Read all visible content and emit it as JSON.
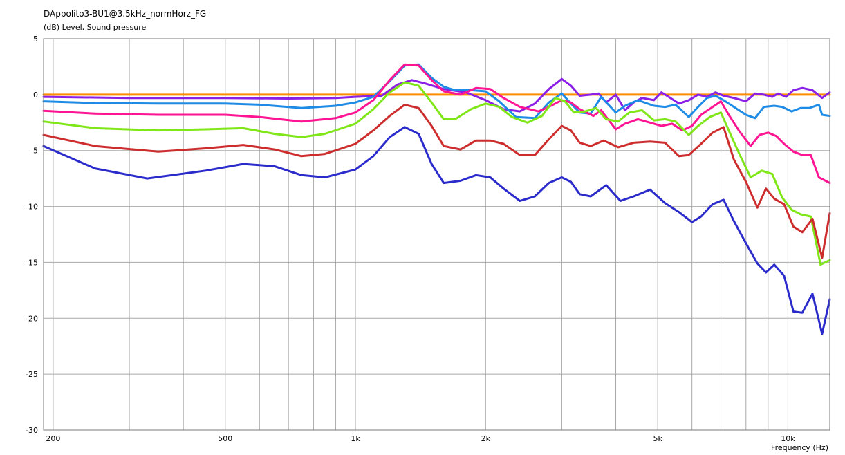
{
  "chart_data": {
    "type": "line",
    "title": "DAppolito3-BU1@3.5kHz_normHorz_FG",
    "ylabel": "(dB)  Level, Sound pressure",
    "xlabel": "Frequency  (Hz)",
    "x_scale": "log",
    "xlim": [
      190,
      12500
    ],
    "ylim": [
      -30,
      5
    ],
    "grid": true,
    "y_ticks": [
      {
        "value": 5,
        "label": "5"
      },
      {
        "value": 0,
        "label": "0"
      },
      {
        "value": -5,
        "label": "-5"
      },
      {
        "value": -10,
        "label": "-10"
      },
      {
        "value": -15,
        "label": "-15"
      },
      {
        "value": -20,
        "label": "-20"
      },
      {
        "value": -25,
        "label": "-25"
      },
      {
        "value": -30,
        "label": "-30"
      }
    ],
    "x_ticks": [
      {
        "value": 200,
        "label": "200"
      },
      {
        "value": 500,
        "label": "500"
      },
      {
        "value": 1000,
        "label": "1k"
      },
      {
        "value": 2000,
        "label": "2k"
      },
      {
        "value": 5000,
        "label": "5k"
      },
      {
        "value": 10000,
        "label": "10k"
      }
    ],
    "x_minor_grid": [
      300,
      400,
      600,
      700,
      800,
      900,
      3000,
      4000,
      6000,
      7000,
      8000,
      9000
    ],
    "series": [
      {
        "color": "#ff8c00",
        "points": [
          [
            190,
            0
          ],
          [
            12500,
            0
          ]
        ]
      },
      {
        "color": "#8b1fe6",
        "points": [
          [
            190,
            -0.2
          ],
          [
            300,
            -0.3
          ],
          [
            500,
            -0.3
          ],
          [
            700,
            -0.35
          ],
          [
            900,
            -0.3
          ],
          [
            1000,
            -0.2
          ],
          [
            1150,
            -0.1
          ],
          [
            1250,
            0.9
          ],
          [
            1350,
            1.3
          ],
          [
            1450,
            1.0
          ],
          [
            1600,
            0.5
          ],
          [
            1800,
            0.2
          ],
          [
            2000,
            -0.5
          ],
          [
            2200,
            -1.3
          ],
          [
            2400,
            -1.5
          ],
          [
            2600,
            -0.8
          ],
          [
            2800,
            0.5
          ],
          [
            3000,
            1.4
          ],
          [
            3150,
            0.8
          ],
          [
            3300,
            -0.1
          ],
          [
            3500,
            0.0
          ],
          [
            3650,
            0.1
          ],
          [
            3800,
            -0.7
          ],
          [
            4000,
            0.0
          ],
          [
            4200,
            -1.4
          ],
          [
            4400,
            -0.7
          ],
          [
            4600,
            -0.3
          ],
          [
            4900,
            -0.5
          ],
          [
            5100,
            0.2
          ],
          [
            5300,
            -0.2
          ],
          [
            5600,
            -0.8
          ],
          [
            5900,
            -0.5
          ],
          [
            6200,
            0.0
          ],
          [
            6500,
            -0.2
          ],
          [
            6800,
            0.2
          ],
          [
            7100,
            -0.1
          ],
          [
            7500,
            -0.3
          ],
          [
            8000,
            -0.6
          ],
          [
            8400,
            0.1
          ],
          [
            8800,
            0.0
          ],
          [
            9200,
            -0.2
          ],
          [
            9500,
            0.1
          ],
          [
            9900,
            -0.2
          ],
          [
            10300,
            0.4
          ],
          [
            10800,
            0.6
          ],
          [
            11400,
            0.4
          ],
          [
            12000,
            -0.3
          ],
          [
            12500,
            0.2
          ]
        ]
      },
      {
        "color": "#1e8ce6",
        "points": [
          [
            190,
            -0.6
          ],
          [
            250,
            -0.75
          ],
          [
            350,
            -0.8
          ],
          [
            500,
            -0.8
          ],
          [
            600,
            -0.9
          ],
          [
            750,
            -1.2
          ],
          [
            900,
            -1.0
          ],
          [
            1000,
            -0.7
          ],
          [
            1100,
            -0.2
          ],
          [
            1200,
            1.2
          ],
          [
            1300,
            2.6
          ],
          [
            1400,
            2.7
          ],
          [
            1500,
            1.5
          ],
          [
            1600,
            0.7
          ],
          [
            1700,
            0.4
          ],
          [
            1850,
            0.4
          ],
          [
            2000,
            0.3
          ],
          [
            2150,
            -0.6
          ],
          [
            2350,
            -2.0
          ],
          [
            2600,
            -2.1
          ],
          [
            2800,
            -0.7
          ],
          [
            3000,
            0.1
          ],
          [
            3150,
            -0.8
          ],
          [
            3300,
            -1.6
          ],
          [
            3500,
            -1.7
          ],
          [
            3700,
            -0.2
          ],
          [
            4000,
            -1.6
          ],
          [
            4200,
            -1.0
          ],
          [
            4500,
            -0.5
          ],
          [
            4900,
            -1.0
          ],
          [
            5200,
            -1.1
          ],
          [
            5500,
            -0.9
          ],
          [
            5900,
            -2.0
          ],
          [
            6200,
            -1.1
          ],
          [
            6500,
            -0.3
          ],
          [
            6800,
            -0.1
          ],
          [
            7100,
            -0.5
          ],
          [
            7500,
            -1.1
          ],
          [
            8000,
            -1.8
          ],
          [
            8400,
            -2.1
          ],
          [
            8800,
            -1.1
          ],
          [
            9300,
            -1.0
          ],
          [
            9700,
            -1.1
          ],
          [
            10200,
            -1.5
          ],
          [
            10700,
            -1.2
          ],
          [
            11200,
            -1.2
          ],
          [
            11800,
            -0.9
          ],
          [
            12000,
            -1.8
          ],
          [
            12500,
            -1.9
          ]
        ]
      },
      {
        "color": "#ff1493",
        "points": [
          [
            190,
            -1.45
          ],
          [
            250,
            -1.7
          ],
          [
            350,
            -1.8
          ],
          [
            500,
            -1.8
          ],
          [
            600,
            -2.0
          ],
          [
            750,
            -2.4
          ],
          [
            900,
            -2.1
          ],
          [
            1000,
            -1.6
          ],
          [
            1100,
            -0.5
          ],
          [
            1200,
            1.3
          ],
          [
            1300,
            2.7
          ],
          [
            1400,
            2.6
          ],
          [
            1500,
            1.3
          ],
          [
            1600,
            0.3
          ],
          [
            1750,
            0.0
          ],
          [
            1900,
            0.6
          ],
          [
            2050,
            0.5
          ],
          [
            2200,
            -0.3
          ],
          [
            2400,
            -1.1
          ],
          [
            2650,
            -1.5
          ],
          [
            2800,
            -1.1
          ],
          [
            3000,
            -0.5
          ],
          [
            3150,
            -0.7
          ],
          [
            3300,
            -1.3
          ],
          [
            3550,
            -1.9
          ],
          [
            3700,
            -1.4
          ],
          [
            4000,
            -3.1
          ],
          [
            4200,
            -2.6
          ],
          [
            4500,
            -2.2
          ],
          [
            4800,
            -2.5
          ],
          [
            5100,
            -2.8
          ],
          [
            5400,
            -2.6
          ],
          [
            5700,
            -3.2
          ],
          [
            6000,
            -2.8
          ],
          [
            6300,
            -1.8
          ],
          [
            6700,
            -1.1
          ],
          [
            7000,
            -0.6
          ],
          [
            7300,
            -1.8
          ],
          [
            7700,
            -3.2
          ],
          [
            8200,
            -4.6
          ],
          [
            8600,
            -3.6
          ],
          [
            9000,
            -3.4
          ],
          [
            9400,
            -3.7
          ],
          [
            9800,
            -4.4
          ],
          [
            10300,
            -5.1
          ],
          [
            10800,
            -5.4
          ],
          [
            11300,
            -5.4
          ],
          [
            11800,
            -7.4
          ],
          [
            12500,
            -7.9
          ]
        ]
      },
      {
        "color": "#7fe617",
        "points": [
          [
            190,
            -2.4
          ],
          [
            250,
            -3.0
          ],
          [
            350,
            -3.2
          ],
          [
            450,
            -3.1
          ],
          [
            550,
            -3.0
          ],
          [
            650,
            -3.5
          ],
          [
            750,
            -3.8
          ],
          [
            850,
            -3.5
          ],
          [
            1000,
            -2.6
          ],
          [
            1100,
            -1.3
          ],
          [
            1200,
            0.2
          ],
          [
            1300,
            1.1
          ],
          [
            1400,
            0.8
          ],
          [
            1500,
            -0.7
          ],
          [
            1600,
            -2.2
          ],
          [
            1700,
            -2.2
          ],
          [
            1850,
            -1.3
          ],
          [
            2000,
            -0.8
          ],
          [
            2150,
            -1.1
          ],
          [
            2300,
            -2.0
          ],
          [
            2500,
            -2.5
          ],
          [
            2700,
            -1.9
          ],
          [
            2900,
            -0.3
          ],
          [
            3050,
            -0.6
          ],
          [
            3200,
            -1.6
          ],
          [
            3400,
            -1.5
          ],
          [
            3600,
            -1.2
          ],
          [
            3800,
            -2.2
          ],
          [
            4050,
            -2.4
          ],
          [
            4300,
            -1.6
          ],
          [
            4600,
            -1.4
          ],
          [
            4900,
            -2.3
          ],
          [
            5200,
            -2.2
          ],
          [
            5500,
            -2.4
          ],
          [
            5900,
            -3.6
          ],
          [
            6200,
            -2.8
          ],
          [
            6600,
            -2.0
          ],
          [
            7000,
            -1.6
          ],
          [
            7300,
            -3.2
          ],
          [
            7700,
            -5.2
          ],
          [
            8200,
            -7.4
          ],
          [
            8700,
            -6.8
          ],
          [
            9200,
            -7.1
          ],
          [
            9700,
            -9.2
          ],
          [
            10200,
            -10.3
          ],
          [
            10700,
            -10.7
          ],
          [
            11300,
            -10.9
          ],
          [
            11900,
            -15.2
          ],
          [
            12500,
            -14.8
          ]
        ]
      },
      {
        "color": "#cd2d2d",
        "points": [
          [
            190,
            -3.6
          ],
          [
            250,
            -4.6
          ],
          [
            350,
            -5.1
          ],
          [
            450,
            -4.8
          ],
          [
            550,
            -4.5
          ],
          [
            650,
            -4.9
          ],
          [
            750,
            -5.5
          ],
          [
            850,
            -5.3
          ],
          [
            1000,
            -4.4
          ],
          [
            1100,
            -3.2
          ],
          [
            1200,
            -1.9
          ],
          [
            1300,
            -0.9
          ],
          [
            1400,
            -1.2
          ],
          [
            1500,
            -2.8
          ],
          [
            1600,
            -4.6
          ],
          [
            1750,
            -4.9
          ],
          [
            1900,
            -4.1
          ],
          [
            2050,
            -4.1
          ],
          [
            2200,
            -4.4
          ],
          [
            2400,
            -5.4
          ],
          [
            2600,
            -5.4
          ],
          [
            2800,
            -4.0
          ],
          [
            3000,
            -2.8
          ],
          [
            3150,
            -3.2
          ],
          [
            3300,
            -4.3
          ],
          [
            3500,
            -4.6
          ],
          [
            3750,
            -4.1
          ],
          [
            4050,
            -4.7
          ],
          [
            4400,
            -4.3
          ],
          [
            4800,
            -4.2
          ],
          [
            5200,
            -4.3
          ],
          [
            5600,
            -5.5
          ],
          [
            5900,
            -5.4
          ],
          [
            6300,
            -4.4
          ],
          [
            6700,
            -3.4
          ],
          [
            7100,
            -2.9
          ],
          [
            7500,
            -5.8
          ],
          [
            8000,
            -7.8
          ],
          [
            8500,
            -10.1
          ],
          [
            8900,
            -8.4
          ],
          [
            9300,
            -9.3
          ],
          [
            9800,
            -9.8
          ],
          [
            10300,
            -11.8
          ],
          [
            10800,
            -12.3
          ],
          [
            11400,
            -11.1
          ],
          [
            12000,
            -14.6
          ],
          [
            12500,
            -10.6
          ]
        ]
      },
      {
        "color": "#2b2bcc",
        "points": [
          [
            190,
            -4.6
          ],
          [
            250,
            -6.6
          ],
          [
            330,
            -7.5
          ],
          [
            450,
            -6.8
          ],
          [
            550,
            -6.2
          ],
          [
            650,
            -6.4
          ],
          [
            750,
            -7.2
          ],
          [
            850,
            -7.4
          ],
          [
            1000,
            -6.7
          ],
          [
            1100,
            -5.5
          ],
          [
            1200,
            -3.8
          ],
          [
            1300,
            -2.9
          ],
          [
            1400,
            -3.5
          ],
          [
            1500,
            -6.2
          ],
          [
            1600,
            -7.9
          ],
          [
            1750,
            -7.7
          ],
          [
            1900,
            -7.2
          ],
          [
            2050,
            -7.4
          ],
          [
            2200,
            -8.4
          ],
          [
            2400,
            -9.5
          ],
          [
            2600,
            -9.1
          ],
          [
            2800,
            -7.9
          ],
          [
            3000,
            -7.4
          ],
          [
            3150,
            -7.8
          ],
          [
            3300,
            -8.9
          ],
          [
            3500,
            -9.1
          ],
          [
            3800,
            -8.1
          ],
          [
            4100,
            -9.5
          ],
          [
            4400,
            -9.1
          ],
          [
            4800,
            -8.5
          ],
          [
            5200,
            -9.7
          ],
          [
            5600,
            -10.5
          ],
          [
            6000,
            -11.4
          ],
          [
            6300,
            -10.9
          ],
          [
            6700,
            -9.8
          ],
          [
            7100,
            -9.4
          ],
          [
            7500,
            -11.3
          ],
          [
            8000,
            -13.3
          ],
          [
            8500,
            -15.1
          ],
          [
            8900,
            -15.9
          ],
          [
            9300,
            -15.2
          ],
          [
            9800,
            -16.2
          ],
          [
            10300,
            -19.4
          ],
          [
            10800,
            -19.5
          ],
          [
            11400,
            -17.8
          ],
          [
            12000,
            -21.4
          ],
          [
            12500,
            -18.3
          ]
        ]
      }
    ]
  }
}
